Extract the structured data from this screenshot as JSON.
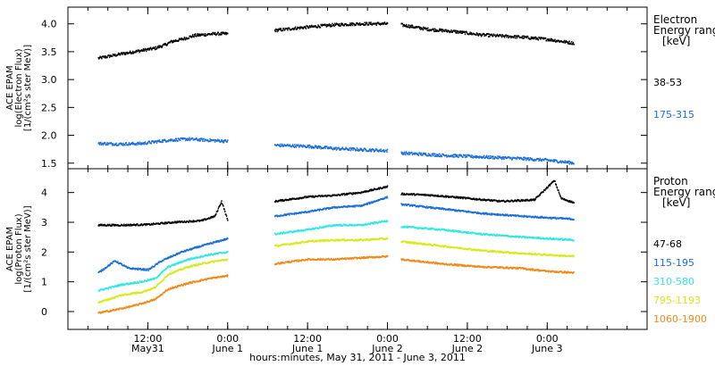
{
  "chart_data": {
    "type": "scatter",
    "xlabel": "hours:minutes, May 31, 2011 - June  3, 2011",
    "x_ticks": [
      {
        "t": 12,
        "label": "12:00",
        "sub": "May31"
      },
      {
        "t": 24,
        "label": "0:00",
        "sub": "June 1"
      },
      {
        "t": 36,
        "label": "12:00",
        "sub": "June 1"
      },
      {
        "t": 48,
        "label": "0:00",
        "sub": "June 2"
      },
      {
        "t": 60,
        "label": "12:00",
        "sub": "June 2"
      },
      {
        "t": 72,
        "label": "0:00",
        "sub": "June 3"
      }
    ],
    "panels": [
      {
        "name": "electron",
        "ylabel_lines": [
          "ACE EPAM",
          "log(Electron Flux)",
          "[1/(cm²s ster MeV)]"
        ],
        "ylim": [
          1.4,
          4.3
        ],
        "yticks": [
          1.5,
          2.0,
          2.5,
          3.0,
          3.5,
          4.0
        ],
        "ytick_labels": [
          "1.5",
          "2.0",
          "2.5",
          "3.0",
          "3.5",
          "4.0"
        ],
        "legend_title": [
          "Electron",
          "Energy ranges",
          "[keV]"
        ],
        "series": [
          {
            "name": "38-53",
            "color": "#000000",
            "segments": [
              [
                [
                  4.5,
                  3.38
                ],
                [
                  8,
                  3.46
                ],
                [
                  11,
                  3.52
                ],
                [
                  13,
                  3.56
                ],
                [
                  14.5,
                  3.62
                ],
                [
                  15.5,
                  3.68
                ],
                [
                  17,
                  3.72
                ],
                [
                  19,
                  3.79
                ],
                [
                  22,
                  3.82
                ],
                [
                  24,
                  3.82
                ]
              ],
              [
                [
                  31,
                  3.88
                ],
                [
                  35,
                  3.93
                ],
                [
                  40,
                  3.98
                ],
                [
                  44,
                  4.0
                ],
                [
                  48,
                  4.0
                ]
              ],
              [
                [
                  50,
                  3.98
                ],
                [
                  54,
                  3.9
                ],
                [
                  58,
                  3.86
                ],
                [
                  62,
                  3.8
                ],
                [
                  68,
                  3.76
                ],
                [
                  72,
                  3.72
                ],
                [
                  76,
                  3.65
                ]
              ]
            ]
          },
          {
            "name": "175-315",
            "color": "#1a6fd6",
            "segments": [
              [
                [
                  4.5,
                  1.85
                ],
                [
                  8,
                  1.84
                ],
                [
                  11,
                  1.85
                ],
                [
                  13,
                  1.88
                ],
                [
                  15,
                  1.91
                ],
                [
                  18,
                  1.93
                ],
                [
                  21,
                  1.91
                ],
                [
                  24,
                  1.89
                ]
              ],
              [
                [
                  31,
                  1.82
                ],
                [
                  36,
                  1.8
                ],
                [
                  40,
                  1.76
                ],
                [
                  44,
                  1.74
                ],
                [
                  48,
                  1.72
                ]
              ],
              [
                [
                  50,
                  1.68
                ],
                [
                  56,
                  1.64
                ],
                [
                  62,
                  1.61
                ],
                [
                  68,
                  1.58
                ],
                [
                  72,
                  1.55
                ],
                [
                  76,
                  1.5
                ]
              ]
            ]
          }
        ]
      },
      {
        "name": "proton",
        "ylabel_lines": [
          "ACE EPAM",
          "log(Proton Flux)",
          "[1/(cm²s ster MeV)]"
        ],
        "ylim": [
          -0.6,
          4.8
        ],
        "yticks": [
          0,
          1,
          2,
          3,
          4
        ],
        "ytick_labels": [
          "0",
          "1",
          "2",
          "3",
          "4"
        ],
        "legend_title": [
          "Proton",
          "Energy ranges",
          "[keV]"
        ],
        "series": [
          {
            "name": "47-68",
            "color": "#000000",
            "segments": [
              [
                [
                  4.5,
                  2.9
                ],
                [
                  8,
                  2.9
                ],
                [
                  12,
                  2.92
                ],
                [
                  16,
                  3.0
                ],
                [
                  20,
                  3.05
                ],
                [
                  22,
                  3.2
                ],
                [
                  23,
                  3.7
                ],
                [
                  24,
                  3.0
                ]
              ],
              [
                [
                  31,
                  3.7
                ],
                [
                  36,
                  3.85
                ],
                [
                  40,
                  3.9
                ],
                [
                  44,
                  4.0
                ],
                [
                  48,
                  4.2
                ]
              ],
              [
                [
                  50,
                  3.95
                ],
                [
                  55,
                  3.9
                ],
                [
                  60,
                  3.8
                ],
                [
                  65,
                  3.7
                ],
                [
                  70,
                  3.75
                ],
                [
                  73,
                  4.4
                ],
                [
                  74,
                  3.8
                ],
                [
                  76,
                  3.65
                ]
              ]
            ]
          },
          {
            "name": "115-195",
            "color": "#1a6fd6",
            "segments": [
              [
                [
                  4.5,
                  1.3
                ],
                [
                  7,
                  1.7
                ],
                [
                  9,
                  1.45
                ],
                [
                  12,
                  1.4
                ],
                [
                  14,
                  1.7
                ],
                [
                  17,
                  2.0
                ],
                [
                  20,
                  2.2
                ],
                [
                  24,
                  2.45
                ]
              ],
              [
                [
                  31,
                  3.2
                ],
                [
                  36,
                  3.35
                ],
                [
                  40,
                  3.5
                ],
                [
                  44,
                  3.55
                ],
                [
                  48,
                  3.85
                ]
              ],
              [
                [
                  50,
                  3.6
                ],
                [
                  56,
                  3.45
                ],
                [
                  62,
                  3.3
                ],
                [
                  68,
                  3.2
                ],
                [
                  72,
                  3.15
                ],
                [
                  76,
                  3.1
                ]
              ]
            ]
          },
          {
            "name": "310-580",
            "color": "#2ee8e0",
            "segments": [
              [
                [
                  4.5,
                  0.7
                ],
                [
                  8,
                  0.9
                ],
                [
                  11,
                  1.0
                ],
                [
                  13,
                  1.1
                ],
                [
                  15,
                  1.5
                ],
                [
                  18,
                  1.75
                ],
                [
                  21,
                  1.9
                ],
                [
                  24,
                  2.0
                ]
              ],
              [
                [
                  31,
                  2.6
                ],
                [
                  36,
                  2.75
                ],
                [
                  40,
                  2.9
                ],
                [
                  44,
                  2.9
                ],
                [
                  48,
                  3.05
                ]
              ],
              [
                [
                  50,
                  2.85
                ],
                [
                  56,
                  2.75
                ],
                [
                  62,
                  2.6
                ],
                [
                  68,
                  2.5
                ],
                [
                  72,
                  2.45
                ],
                [
                  76,
                  2.4
                ]
              ]
            ]
          },
          {
            "name": "795-1193",
            "color": "#d8e81a",
            "segments": [
              [
                [
                  4.5,
                  0.3
                ],
                [
                  8,
                  0.55
                ],
                [
                  11,
                  0.65
                ],
                [
                  13,
                  0.8
                ],
                [
                  15,
                  1.25
                ],
                [
                  18,
                  1.5
                ],
                [
                  21,
                  1.65
                ],
                [
                  24,
                  1.75
                ]
              ],
              [
                [
                  31,
                  2.2
                ],
                [
                  36,
                  2.35
                ],
                [
                  40,
                  2.4
                ],
                [
                  44,
                  2.4
                ],
                [
                  48,
                  2.45
                ]
              ],
              [
                [
                  50,
                  2.35
                ],
                [
                  56,
                  2.2
                ],
                [
                  62,
                  2.05
                ],
                [
                  68,
                  1.95
                ],
                [
                  72,
                  1.9
                ],
                [
                  76,
                  1.85
                ]
              ]
            ]
          },
          {
            "name": "1060-1900",
            "color": "#ee8a18",
            "segments": [
              [
                [
                  4.5,
                  -0.05
                ],
                [
                  7,
                  0.05
                ],
                [
                  10,
                  0.2
                ],
                [
                  13,
                  0.4
                ],
                [
                  15,
                  0.75
                ],
                [
                  18,
                  0.95
                ],
                [
                  21,
                  1.1
                ],
                [
                  24,
                  1.2
                ]
              ],
              [
                [
                  31,
                  1.6
                ],
                [
                  36,
                  1.75
                ],
                [
                  40,
                  1.75
                ],
                [
                  44,
                  1.8
                ],
                [
                  48,
                  1.85
                ]
              ],
              [
                [
                  50,
                  1.75
                ],
                [
                  56,
                  1.6
                ],
                [
                  62,
                  1.5
                ],
                [
                  68,
                  1.45
                ],
                [
                  72,
                  1.35
                ],
                [
                  76,
                  1.3
                ]
              ]
            ]
          }
        ]
      }
    ],
    "xlim": [
      0,
      87
    ]
  }
}
